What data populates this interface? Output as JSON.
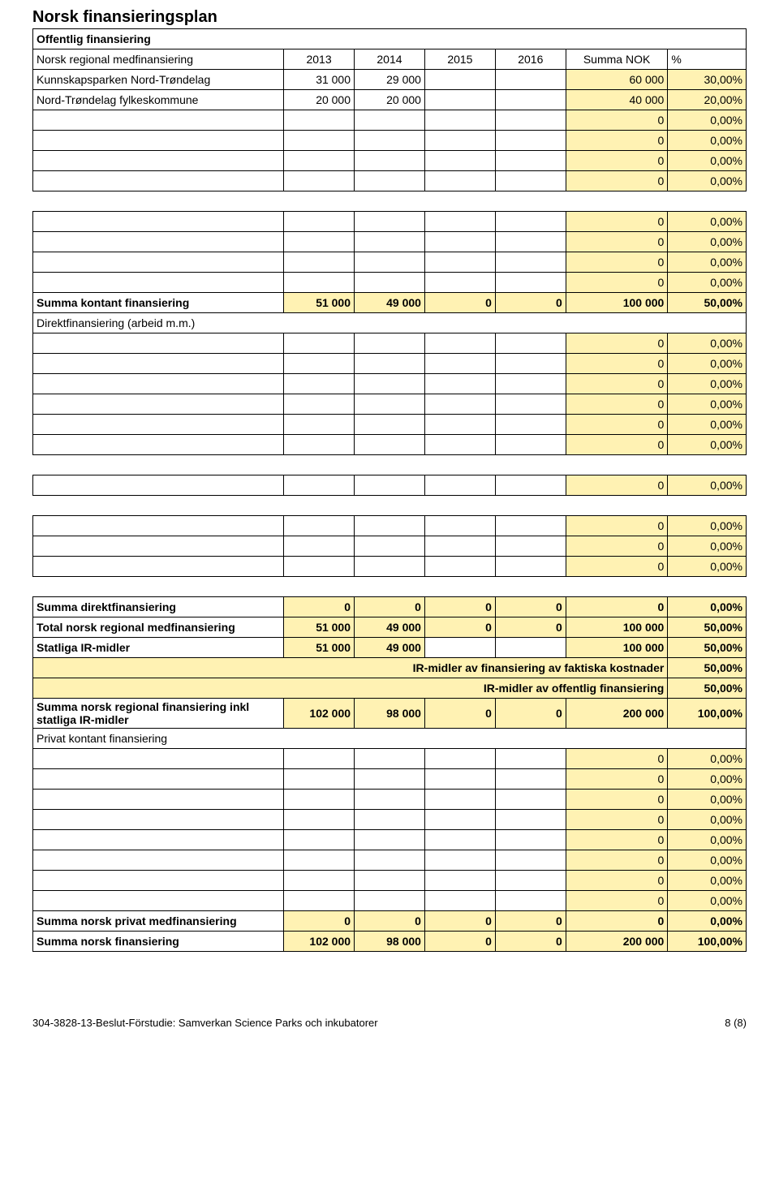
{
  "title": "Norsk finansieringsplan",
  "colors": {
    "fill": "#fff2b3",
    "border": "#000000",
    "bg": "#ffffff"
  },
  "col_widths": [
    "32%",
    "9%",
    "9%",
    "9%",
    "9%",
    "13%",
    "10%"
  ],
  "rows": [
    {
      "type": "header",
      "label": "Offentlig finansiering",
      "bold": true
    },
    {
      "type": "cols",
      "cells": [
        "Norsk regional medfinansiering",
        "2013",
        "2014",
        "2015",
        "2016",
        "Summa NOK",
        "%"
      ],
      "center": [
        1,
        2,
        3,
        4,
        5
      ]
    },
    {
      "type": "data",
      "label": "Kunnskapsparken Nord-Trøndelag",
      "v": [
        "31 000",
        "29 000",
        "",
        "",
        "60 000",
        "30,00%"
      ],
      "fill": [
        5,
        6
      ]
    },
    {
      "type": "data",
      "label": "Nord-Trøndelag fylkeskommune",
      "v": [
        "20 000",
        "20 000",
        "",
        "",
        "40 000",
        "20,00%"
      ],
      "fill": [
        5,
        6
      ]
    },
    {
      "type": "emptyrow"
    },
    {
      "type": "emptyrow"
    },
    {
      "type": "emptyrow"
    },
    {
      "type": "emptyrow"
    },
    {
      "type": "spacer"
    },
    {
      "type": "emptyrow"
    },
    {
      "type": "emptyrow"
    },
    {
      "type": "emptyrow"
    },
    {
      "type": "emptyrow"
    },
    {
      "type": "data",
      "label": "Summa kontant finansiering",
      "v": [
        "51 000",
        "49 000",
        "0",
        "0",
        "100 000",
        "50,00%"
      ],
      "fill": [
        1,
        2,
        3,
        4,
        5,
        6
      ],
      "bold": true
    },
    {
      "type": "header",
      "label": "Direktfinansiering (arbeid m.m.)"
    },
    {
      "type": "emptyrow"
    },
    {
      "type": "emptyrow"
    },
    {
      "type": "emptyrow"
    },
    {
      "type": "emptyrow"
    },
    {
      "type": "emptyrow"
    },
    {
      "type": "emptyrow"
    },
    {
      "type": "spacer"
    },
    {
      "type": "emptyrow"
    },
    {
      "type": "spacer"
    },
    {
      "type": "emptyrow"
    },
    {
      "type": "emptyrow"
    },
    {
      "type": "emptyrow"
    },
    {
      "type": "spacer"
    },
    {
      "type": "data",
      "label": "Summa direktfinansiering",
      "v": [
        "0",
        "0",
        "0",
        "0",
        "0",
        "0,00%"
      ],
      "fill": [
        1,
        2,
        3,
        4,
        5,
        6
      ],
      "bold": true
    },
    {
      "type": "data",
      "label": "Total norsk regional medfinansiering",
      "v": [
        "51 000",
        "49 000",
        "0",
        "0",
        "100 000",
        "50,00%"
      ],
      "fill": [
        1,
        2,
        3,
        4,
        5,
        6
      ],
      "bold": true
    },
    {
      "type": "data",
      "label": "Statliga IR-midler",
      "v": [
        "51 000",
        "49 000",
        "",
        "",
        "100 000",
        "50,00%"
      ],
      "fill": [
        1,
        2,
        5,
        6
      ],
      "bold": true
    },
    {
      "type": "span",
      "label": "IR-midler av finansiering av faktiska kostnader",
      "val": "50,00%",
      "bold": true
    },
    {
      "type": "span",
      "label": "IR-midler av offentlig finansiering",
      "val": "50,00%",
      "bold": true
    },
    {
      "type": "data",
      "label": "Summa norsk regional finansiering inkl statliga IR-midler",
      "v": [
        "102 000",
        "98 000",
        "0",
        "0",
        "200 000",
        "100,00%"
      ],
      "fill": [
        1,
        2,
        3,
        4,
        5,
        6
      ],
      "bold": true
    },
    {
      "type": "header",
      "label": "Privat kontant finansiering"
    },
    {
      "type": "emptyrow"
    },
    {
      "type": "emptyrow"
    },
    {
      "type": "emptyrow"
    },
    {
      "type": "emptyrow"
    },
    {
      "type": "emptyrow"
    },
    {
      "type": "emptyrow"
    },
    {
      "type": "emptyrow"
    },
    {
      "type": "emptyrow"
    },
    {
      "type": "data",
      "label": "Summa norsk privat medfinansiering",
      "v": [
        "0",
        "0",
        "0",
        "0",
        "0",
        "0,00%"
      ],
      "fill": [
        1,
        2,
        3,
        4,
        5,
        6
      ],
      "bold": true
    },
    {
      "type": "data",
      "label": "Summa norsk finansiering",
      "v": [
        "102 000",
        "98 000",
        "0",
        "0",
        "200 000",
        "100,00%"
      ],
      "fill": [
        1,
        2,
        3,
        4,
        5,
        6
      ],
      "bold": true
    }
  ],
  "footer_left": "304-3828-13-Beslut-Förstudie: Samverkan Science Parks och inkubatorer",
  "footer_right": "8 (8)"
}
